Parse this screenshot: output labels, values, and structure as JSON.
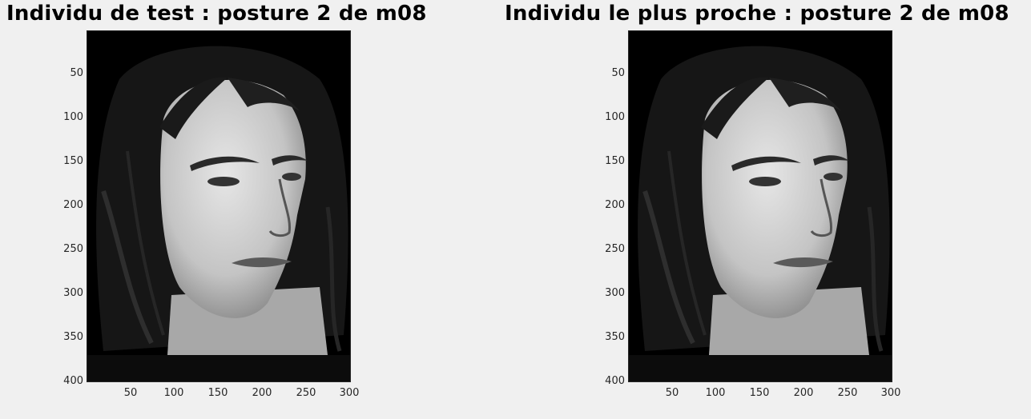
{
  "figures": [
    {
      "id": "left",
      "title": "Individu de test : posture 2 de m08",
      "image_label": "Individu de test : posture 2 de m08",
      "y_ticks": [
        "50",
        "100",
        "150",
        "200",
        "250",
        "300",
        "350",
        "400"
      ],
      "x_ticks": [
        "50",
        "100",
        "150",
        "200",
        "250",
        "300"
      ]
    },
    {
      "id": "right",
      "title": "Individu le plus proche : posture 2 de m08",
      "image_label": "Individu le plus proche : posture 2 de m08",
      "y_ticks": [
        "50",
        "100",
        "150",
        "200",
        "250",
        "300",
        "350",
        "400"
      ],
      "x_ticks": [
        "50",
        "100",
        "150",
        "200",
        "250",
        "300"
      ]
    }
  ],
  "axis_range": {
    "x": [
      0,
      300
    ],
    "y": [
      0,
      400
    ]
  },
  "colors": {
    "background": "#f0f0f0",
    "image_bg": "#000000",
    "skin": "#d8d8d8",
    "hair": "#141414",
    "text": "#000000"
  }
}
